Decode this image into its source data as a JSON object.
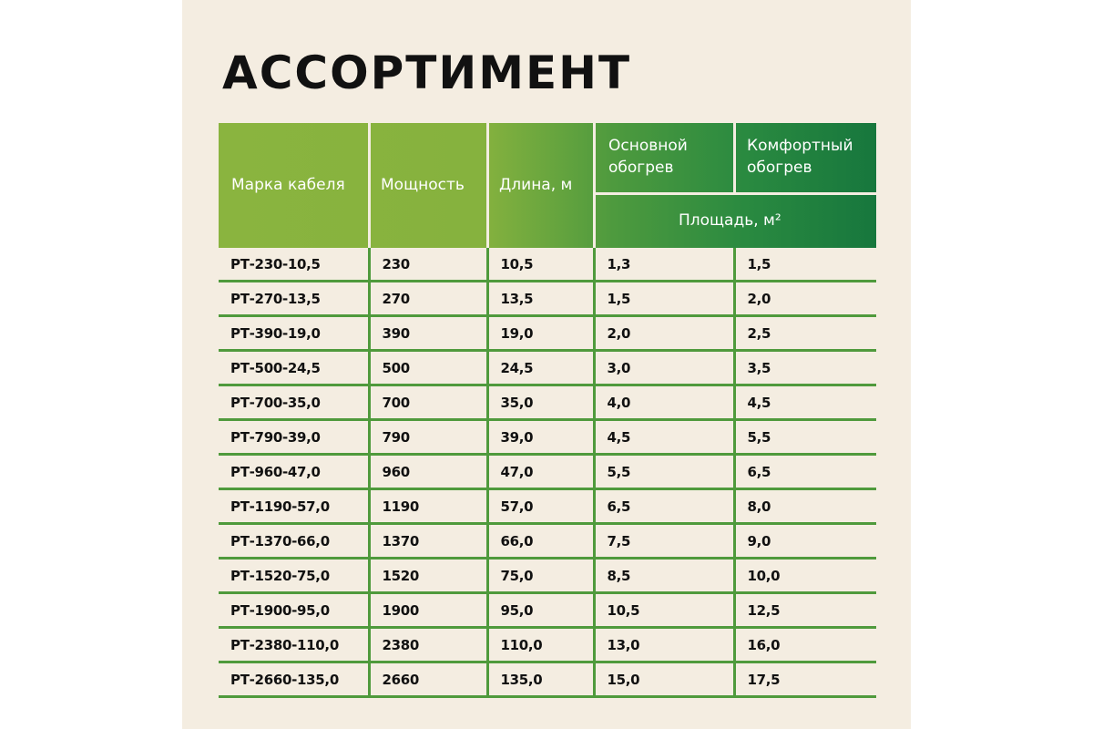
{
  "title": "АССОРТИМЕНТ",
  "colors": {
    "background": "#f4ede1",
    "header_gradient_start": "#8ab43f",
    "header_gradient_end": "#17773d",
    "grid_lines": "#4f9a3c"
  },
  "table": {
    "headers": {
      "brand": "Марка кабеля",
      "power": "Мощность",
      "length": "Длина, м",
      "main_heating": "Основной обогрев",
      "comfort_heating": "Комфортный обогрев",
      "area": "Площадь, м²"
    },
    "rows": [
      [
        "РТ-230-10,5",
        "230",
        "10,5",
        "1,3",
        "1,5"
      ],
      [
        "РТ-270-13,5",
        "270",
        "13,5",
        "1,5",
        "2,0"
      ],
      [
        "РТ-390-19,0",
        "390",
        "19,0",
        "2,0",
        "2,5"
      ],
      [
        "РТ-500-24,5",
        "500",
        "24,5",
        "3,0",
        "3,5"
      ],
      [
        "РТ-700-35,0",
        "700",
        "35,0",
        "4,0",
        "4,5"
      ],
      [
        "РТ-790-39,0",
        "790",
        "39,0",
        "4,5",
        "5,5"
      ],
      [
        "РТ-960-47,0",
        "960",
        "47,0",
        "5,5",
        "6,5"
      ],
      [
        "РТ-1190-57,0",
        "1190",
        "57,0",
        "6,5",
        "8,0"
      ],
      [
        "РТ-1370-66,0",
        "1370",
        "66,0",
        "7,5",
        "9,0"
      ],
      [
        "РТ-1520-75,0",
        "1520",
        "75,0",
        "8,5",
        "10,0"
      ],
      [
        "РТ-1900-95,0",
        "1900",
        "95,0",
        "10,5",
        "12,5"
      ],
      [
        "РТ-2380-110,0",
        "2380",
        "110,0",
        "13,0",
        "16,0"
      ],
      [
        "РТ-2660-135,0",
        "2660",
        "135,0",
        "15,0",
        "17,5"
      ]
    ]
  }
}
